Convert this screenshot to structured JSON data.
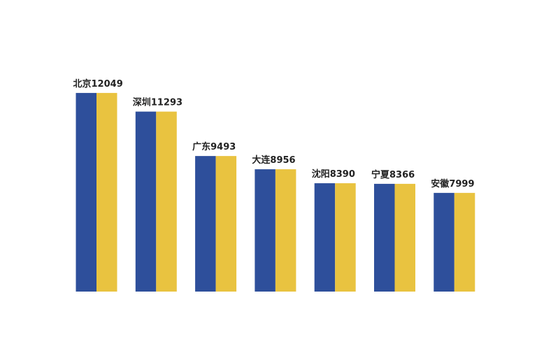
{
  "chart_data": {
    "type": "bar",
    "categories": [
      "北京",
      "深圳",
      "广东",
      "大连",
      "沈阳",
      "宁夏",
      "安徽"
    ],
    "values": [
      12049,
      11293,
      9493,
      8956,
      8390,
      8366,
      7999
    ],
    "colors": [
      "#2e4f9b",
      "#e9c340"
    ],
    "ylim": [
      4000,
      12500
    ]
  }
}
